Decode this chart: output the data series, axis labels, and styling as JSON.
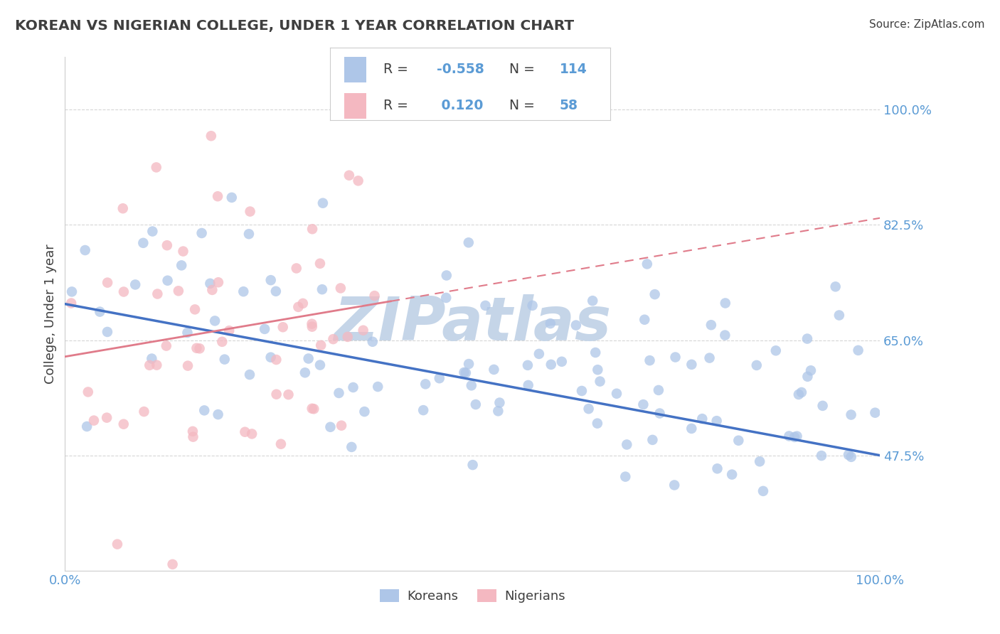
{
  "title": "KOREAN VS NIGERIAN COLLEGE, UNDER 1 YEAR CORRELATION CHART",
  "source": "Source: ZipAtlas.com",
  "ylabel": "College, Under 1 year",
  "xlim": [
    0.0,
    1.0
  ],
  "ylim": [
    0.3,
    1.08
  ],
  "yticks": [
    0.475,
    0.65,
    0.825,
    1.0
  ],
  "ytick_labels": [
    "47.5%",
    "65.0%",
    "82.5%",
    "100.0%"
  ],
  "korean_R": -0.558,
  "korean_N": 114,
  "nigerian_R": 0.12,
  "nigerian_N": 58,
  "korean_color": "#aec6e8",
  "nigerian_color": "#f4b8c1",
  "korean_line_color": "#4472c4",
  "nigerian_line_color": "#e07b8a",
  "title_color": "#3f3f3f",
  "axis_label_color": "#5b9bd5",
  "grid_color": "#cccccc",
  "watermark_color": "#c5d5e8",
  "background_color": "#ffffff",
  "legend_border_color": "#cccccc",
  "legend_text_color": "#3f3f3f",
  "legend_value_color": "#5b9bd5",
  "korean_line_start_y": 0.705,
  "korean_line_end_y": 0.475,
  "nigerian_line_start_y": 0.625,
  "nigerian_line_end_y": 0.705,
  "nigerian_line_dashed_end_y": 0.83
}
